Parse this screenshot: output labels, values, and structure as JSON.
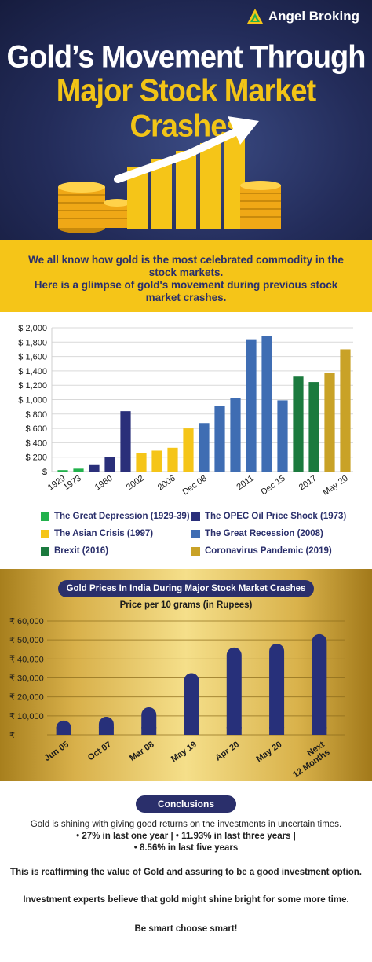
{
  "header": {
    "brand": "Angel Broking",
    "title_line1": "Gold’s Movement Through",
    "title_line2": "Major Stock Market Crashes"
  },
  "intro": {
    "line1": "We all know how gold is the most celebrated commodity in the",
    "line2": "stock markets.",
    "line3": "Here is a glimpse of gold's movement during previous stock",
    "line4": "market crashes."
  },
  "colors": {
    "navy": "#2a2f6b",
    "gold": "#f5c518",
    "great_depression": "#22b14c",
    "opec": "#2a2f7a",
    "asian": "#f5c518",
    "great_recession": "#3f6db3",
    "brexit": "#1b7a3e",
    "coronavirus": "#c9a227"
  },
  "legend": [
    {
      "label": "The Great Depression (1929-39)",
      "color": "#22b14c"
    },
    {
      "label": "The OPEC Oil Price Shock (1973)",
      "color": "#2a2f7a"
    },
    {
      "label": "The Asian Crisis (1997)",
      "color": "#f5c518"
    },
    {
      "label": "The Great Recession (2008)",
      "color": "#3f6db3"
    },
    {
      "label": "Brexit (2016)",
      "color": "#1b7a3e"
    },
    {
      "label": "Coronavirus Pandemic (2019)",
      "color": "#c9a227"
    }
  ],
  "chart_data": [
    {
      "type": "bar",
      "ylim": [
        0,
        2000
      ],
      "yticks": [
        "$",
        "$ 200",
        "$ 400",
        "$ 600",
        "$ 800",
        "$ 1,000",
        "$ 1,200",
        "$ 1,400",
        "$ 1,600",
        "$ 1,800",
        "$ 2,000"
      ],
      "x_labels": [
        "1929",
        "1973",
        "1980",
        "2002",
        "2006",
        "Dec 08",
        "2011",
        "Dec 15",
        "2017",
        "May 20"
      ],
      "grid": true,
      "bars": [
        {
          "value": 20,
          "color": "#22b14c"
        },
        {
          "value": 40,
          "color": "#22b14c"
        },
        {
          "value": 90,
          "color": "#2a2f7a"
        },
        {
          "value": 200,
          "color": "#2a2f7a"
        },
        {
          "value": 840,
          "color": "#2a2f7a"
        },
        {
          "value": 255,
          "color": "#f5c518"
        },
        {
          "value": 290,
          "color": "#f5c518"
        },
        {
          "value": 330,
          "color": "#f5c518"
        },
        {
          "value": 600,
          "color": "#f5c518"
        },
        {
          "value": 675,
          "color": "#3f6db3"
        },
        {
          "value": 910,
          "color": "#3f6db3"
        },
        {
          "value": 1025,
          "color": "#3f6db3"
        },
        {
          "value": 1840,
          "color": "#3f6db3"
        },
        {
          "value": 1890,
          "color": "#3f6db3"
        },
        {
          "value": 990,
          "color": "#3f6db3"
        },
        {
          "value": 1320,
          "color": "#1b7a3e"
        },
        {
          "value": 1245,
          "color": "#1b7a3e"
        },
        {
          "value": 1370,
          "color": "#c9a227"
        },
        {
          "value": 1700,
          "color": "#c9a227"
        }
      ]
    },
    {
      "type": "bar",
      "title": "Gold Prices In India During Major Stock Market Crashes",
      "subtitle": "Price per 10 grams (in Rupees)",
      "ylim": [
        0,
        60000
      ],
      "yticks": [
        "₹",
        "₹ 10,000",
        "₹ 20,000",
        "₹ 30,000",
        "₹ 40,000",
        "₹ 50,000",
        "₹ 60,000"
      ],
      "categories": [
        "Jun 05",
        "Oct 07",
        "Mar 08",
        "May 19",
        "Apr 20",
        "May 20",
        "Next 12 Months"
      ],
      "values": [
        7500,
        9500,
        14500,
        32500,
        46000,
        48000,
        53000
      ]
    }
  ],
  "conclusions": {
    "label": "Conclusions",
    "line1": "Gold is shining with giving good returns on the investments in uncertain times.",
    "line2": "• 27% in last one year | • 11.93% in last three years |",
    "line3": "• 8.56% in last five years",
    "line4": "This is reaffirming the value of Gold and assuring to be a good investment option.",
    "line5": "Investment experts believe that gold might shine bright for some more time.",
    "line6": "Be smart choose smart!"
  }
}
